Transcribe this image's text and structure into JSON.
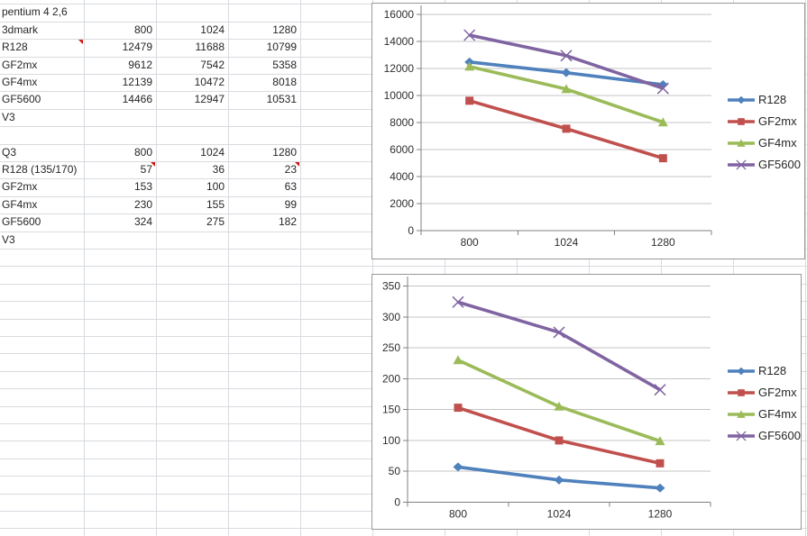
{
  "sheet": {
    "rows": [
      {
        "row": 0,
        "cells": [
          {
            "col": 0,
            "text": "pentium 4 2,6",
            "align": "left"
          }
        ]
      },
      {
        "row": 1,
        "cells": [
          {
            "col": 0,
            "text": "3dmark",
            "align": "left"
          },
          {
            "col": 1,
            "text": "800"
          },
          {
            "col": 2,
            "text": "1024"
          },
          {
            "col": 3,
            "text": "1280"
          }
        ]
      },
      {
        "row": 2,
        "cells": [
          {
            "col": 0,
            "text": "R128",
            "align": "left",
            "comment": true
          },
          {
            "col": 1,
            "text": "12479"
          },
          {
            "col": 2,
            "text": "11688"
          },
          {
            "col": 3,
            "text": "10799"
          }
        ]
      },
      {
        "row": 3,
        "cells": [
          {
            "col": 0,
            "text": "GF2mx",
            "align": "left"
          },
          {
            "col": 1,
            "text": "9612"
          },
          {
            "col": 2,
            "text": "7542"
          },
          {
            "col": 3,
            "text": "5358"
          }
        ]
      },
      {
        "row": 4,
        "cells": [
          {
            "col": 0,
            "text": "GF4mx",
            "align": "left"
          },
          {
            "col": 1,
            "text": "12139"
          },
          {
            "col": 2,
            "text": "10472"
          },
          {
            "col": 3,
            "text": "8018"
          }
        ]
      },
      {
        "row": 5,
        "cells": [
          {
            "col": 0,
            "text": "GF5600",
            "align": "left"
          },
          {
            "col": 1,
            "text": "14466"
          },
          {
            "col": 2,
            "text": "12947"
          },
          {
            "col": 3,
            "text": "10531"
          }
        ]
      },
      {
        "row": 6,
        "cells": [
          {
            "col": 0,
            "text": "V3",
            "align": "left"
          }
        ]
      },
      {
        "row": 8,
        "cells": [
          {
            "col": 0,
            "text": "Q3",
            "align": "left"
          },
          {
            "col": 1,
            "text": "800"
          },
          {
            "col": 2,
            "text": "1024"
          },
          {
            "col": 3,
            "text": "1280"
          }
        ]
      },
      {
        "row": 9,
        "cells": [
          {
            "col": 0,
            "text": "R128 (135/170)",
            "align": "left"
          },
          {
            "col": 1,
            "text": "57",
            "comment": true
          },
          {
            "col": 2,
            "text": "36"
          },
          {
            "col": 3,
            "text": "23",
            "comment": true
          }
        ]
      },
      {
        "row": 10,
        "cells": [
          {
            "col": 0,
            "text": "GF2mx",
            "align": "left"
          },
          {
            "col": 1,
            "text": "153"
          },
          {
            "col": 2,
            "text": "100"
          },
          {
            "col": 3,
            "text": "63"
          }
        ]
      },
      {
        "row": 11,
        "cells": [
          {
            "col": 0,
            "text": "GF4mx",
            "align": "left"
          },
          {
            "col": 1,
            "text": "230"
          },
          {
            "col": 2,
            "text": "155"
          },
          {
            "col": 3,
            "text": "99"
          }
        ]
      },
      {
        "row": 12,
        "cells": [
          {
            "col": 0,
            "text": "GF5600",
            "align": "left"
          },
          {
            "col": 1,
            "text": "324"
          },
          {
            "col": 2,
            "text": "275"
          },
          {
            "col": 3,
            "text": "182"
          }
        ]
      },
      {
        "row": 13,
        "cells": [
          {
            "col": 0,
            "text": "V3",
            "align": "left"
          }
        ]
      }
    ],
    "colors": {
      "gridline": "#d8dbdf",
      "text": "#262626",
      "comment_indicator": "#cc1414"
    }
  },
  "chart_data": [
    {
      "type": "line",
      "title": "",
      "categories": [
        "800",
        "1024",
        "1280"
      ],
      "series": [
        {
          "name": "R128",
          "values": [
            12479,
            11688,
            10799
          ],
          "color": "#4f81bd",
          "marker": "diamond"
        },
        {
          "name": "GF2mx",
          "values": [
            9612,
            7542,
            5358
          ],
          "color": "#c0504d",
          "marker": "square"
        },
        {
          "name": "GF4mx",
          "values": [
            12139,
            10472,
            8018
          ],
          "color": "#9bbb59",
          "marker": "triangle"
        },
        {
          "name": "GF5600",
          "values": [
            14466,
            12947,
            10531
          ],
          "color": "#8064a2",
          "marker": "x"
        }
      ],
      "xlabel": "",
      "ylabel": "",
      "ylim": [
        0,
        16000
      ],
      "ytick_interval": 2000,
      "grid": true,
      "legend_position": "right"
    },
    {
      "type": "line",
      "title": "",
      "categories": [
        "800",
        "1024",
        "1280"
      ],
      "series": [
        {
          "name": "R128",
          "values": [
            57,
            36,
            23
          ],
          "color": "#4f81bd",
          "marker": "diamond"
        },
        {
          "name": "GF2mx",
          "values": [
            153,
            100,
            63
          ],
          "color": "#c0504d",
          "marker": "square"
        },
        {
          "name": "GF4mx",
          "values": [
            230,
            155,
            99
          ],
          "color": "#9bbb59",
          "marker": "triangle"
        },
        {
          "name": "GF5600",
          "values": [
            324,
            275,
            182
          ],
          "color": "#8064a2",
          "marker": "x"
        }
      ],
      "xlabel": "",
      "ylabel": "",
      "ylim": [
        0,
        350
      ],
      "ytick_interval": 50,
      "grid": true,
      "legend_position": "right"
    }
  ],
  "chart_style": {
    "background": "#ffffff",
    "border_color": "#989898",
    "gridline_color": "#c4c4c4",
    "axis_color": "#808080",
    "tick_label_color": "#2e2e2e"
  }
}
